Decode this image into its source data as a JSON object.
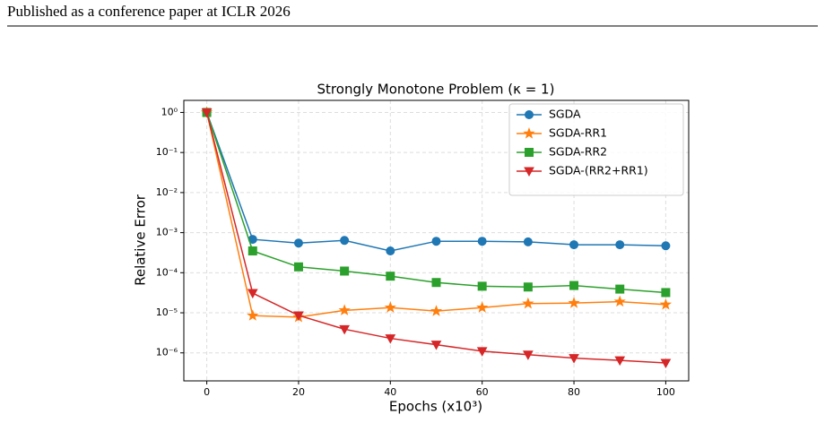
{
  "header": {
    "text": "Published as a conference paper at ICLR 2026"
  },
  "chart_data": {
    "type": "line",
    "title": "Strongly Monotone Problem (κ = 1)",
    "x_label": "Epochs (x10³)",
    "y_label": "Relative Error",
    "x": [
      0,
      10,
      20,
      30,
      40,
      50,
      60,
      70,
      80,
      90,
      100
    ],
    "xlim": [
      -5,
      105
    ],
    "xticks": [
      0,
      20,
      40,
      60,
      80,
      100
    ],
    "yscale": "log",
    "ylim": [
      2e-07,
      2
    ],
    "yticks": [
      {
        "value": 1,
        "label": "10⁰"
      },
      {
        "value": 0.1,
        "label": "10⁻¹"
      },
      {
        "value": 0.01,
        "label": "10⁻²"
      },
      {
        "value": 0.001,
        "label": "10⁻³"
      },
      {
        "value": 0.0001,
        "label": "10⁻⁴"
      },
      {
        "value": 1e-05,
        "label": "10⁻⁵"
      },
      {
        "value": 1e-06,
        "label": "10⁻⁶"
      }
    ],
    "grid": true,
    "legend": "upper right",
    "series": [
      {
        "name": "SGDA",
        "color": "#1f77b4",
        "marker": "circle",
        "values": [
          1,
          0.00068,
          0.00055,
          0.00064,
          0.00035,
          0.00061,
          0.00061,
          0.00059,
          0.0005,
          0.0005,
          0.00047
        ]
      },
      {
        "name": "SGDA-RR1",
        "color": "#ff7f0e",
        "marker": "star",
        "values": [
          1,
          8.5e-06,
          7.8e-06,
          1.15e-05,
          1.35e-05,
          1.1e-05,
          1.35e-05,
          1.7e-05,
          1.75e-05,
          1.9e-05,
          1.6e-05
        ]
      },
      {
        "name": "SGDA-RR2",
        "color": "#2ca02c",
        "marker": "square",
        "values": [
          1,
          0.00035,
          0.00014,
          0.00011,
          8.2e-05,
          5.7e-05,
          4.6e-05,
          4.4e-05,
          4.8e-05,
          3.9e-05,
          3.2e-05
        ]
      },
      {
        "name": "SGDA-(RR2+RR1)",
        "color": "#d62728",
        "marker": "triangle-down",
        "values": [
          1,
          3.1e-05,
          8.6e-06,
          3.9e-06,
          2.3e-06,
          1.6e-06,
          1.1e-06,
          9e-07,
          7.4e-07,
          6.5e-07,
          5.6e-07
        ]
      }
    ]
  }
}
